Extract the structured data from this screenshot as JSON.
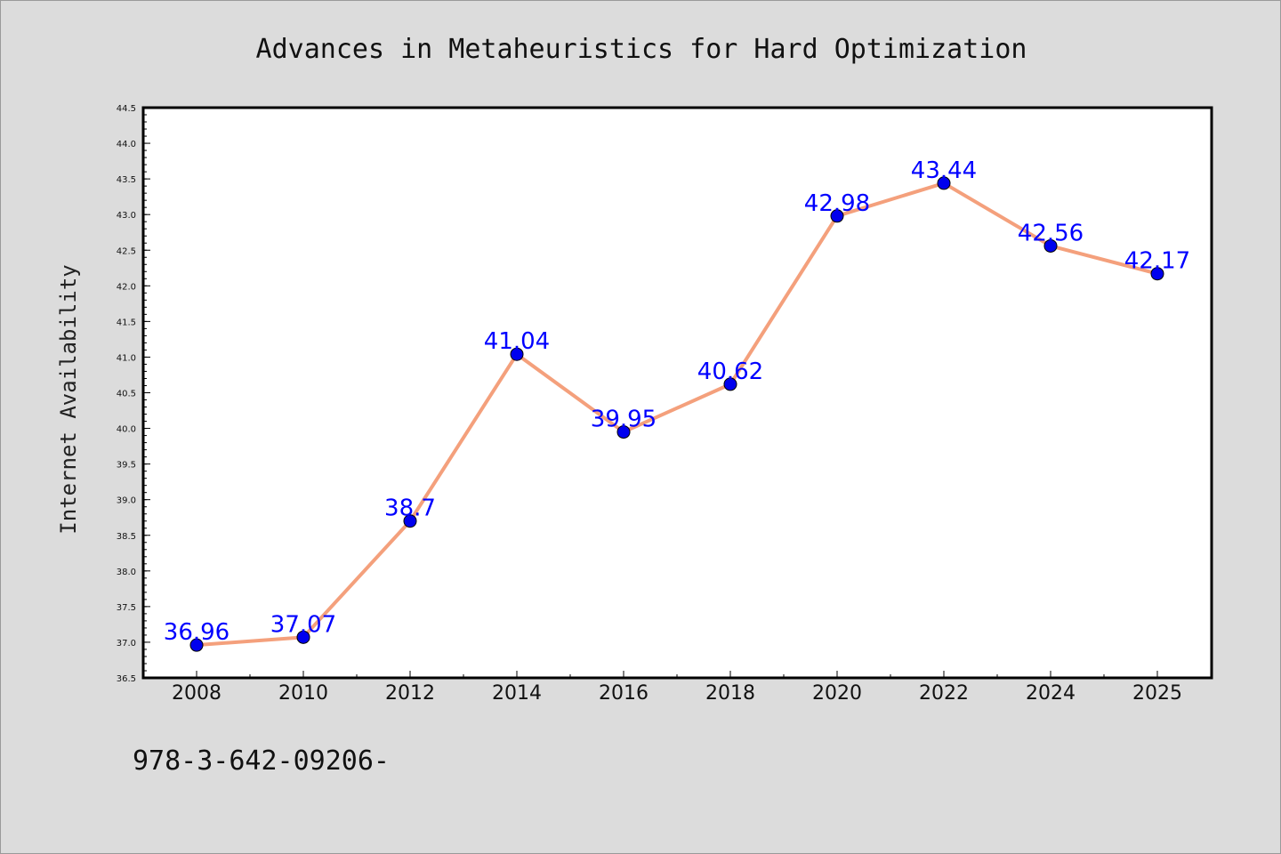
{
  "chart_data": {
    "type": "line",
    "title": "Advances in Metaheuristics for Hard Optimization",
    "xlabel": "",
    "ylabel": "Internet Availability",
    "categories": [
      "2008",
      "2010",
      "2012",
      "2014",
      "2016",
      "2018",
      "2020",
      "2022",
      "2024",
      "2025"
    ],
    "series": [
      {
        "values": [
          36.96,
          37.07,
          38.7,
          41.04,
          39.95,
          40.62,
          42.98,
          43.44,
          42.56,
          42.17
        ],
        "labels": [
          "36.96",
          "37.07",
          "38.7",
          "41.04",
          "39.95",
          "40.62",
          "42.98",
          "43.44",
          "42.56",
          "42.17"
        ]
      }
    ],
    "ylim": [
      36.5,
      44.5
    ],
    "yticks": [
      "36.5",
      "37.0",
      "37.5",
      "38.0",
      "38.5",
      "39.0",
      "39.5",
      "40.0",
      "40.5",
      "41.0",
      "41.5",
      "42.0",
      "42.5",
      "43.0",
      "43.5",
      "44.0",
      "44.5"
    ],
    "grid": false,
    "legend": "none",
    "colors": {
      "line": "#f4a07c",
      "marker": "#0000ee",
      "data_label": "#0000ff",
      "plot_bg": "#ffffff",
      "page_bg": "#dcdcdc"
    }
  },
  "footer": {
    "text": "978-3-642-09206-"
  }
}
